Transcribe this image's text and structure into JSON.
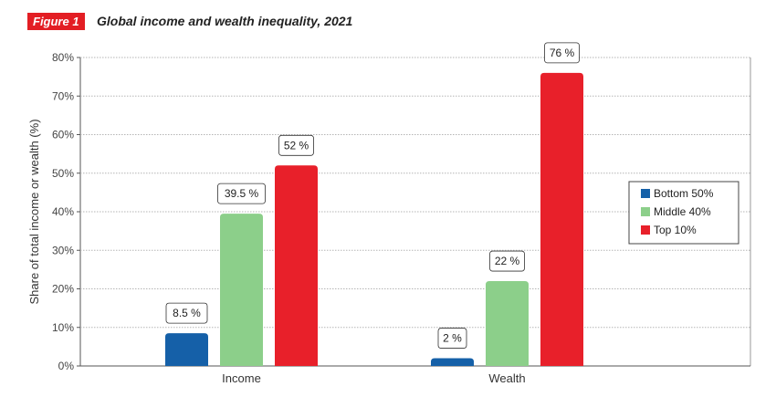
{
  "figure": {
    "badge": "Figure 1",
    "title": "Global income and wealth inequality, 2021"
  },
  "colors": {
    "bottom": "#1560a8",
    "middle": "#8ccf8a",
    "top": "#e8202a",
    "accent": "#e31e24"
  },
  "chart_data": {
    "type": "bar",
    "categories": [
      "Income",
      "Wealth"
    ],
    "series": [
      {
        "name": "Bottom 50%",
        "values": [
          8.5,
          2
        ],
        "labels": [
          "8.5 %",
          "2 %"
        ]
      },
      {
        "name": "Middle 40%",
        "values": [
          39.5,
          22
        ],
        "labels": [
          "39.5 %",
          "22 %"
        ]
      },
      {
        "name": "Top 10%",
        "values": [
          52,
          76
        ],
        "labels": [
          "52 %",
          "76 %"
        ]
      }
    ],
    "ylabel": "Share of total income or wealth (%)",
    "ylim": [
      0,
      80
    ],
    "yticks": [
      0,
      10,
      20,
      30,
      40,
      50,
      60,
      70,
      80
    ],
    "ytick_labels": [
      "0%",
      "10%",
      "20%",
      "30%",
      "40%",
      "50%",
      "60%",
      "70%",
      "80%"
    ],
    "grid": true,
    "legend_position": "right"
  }
}
